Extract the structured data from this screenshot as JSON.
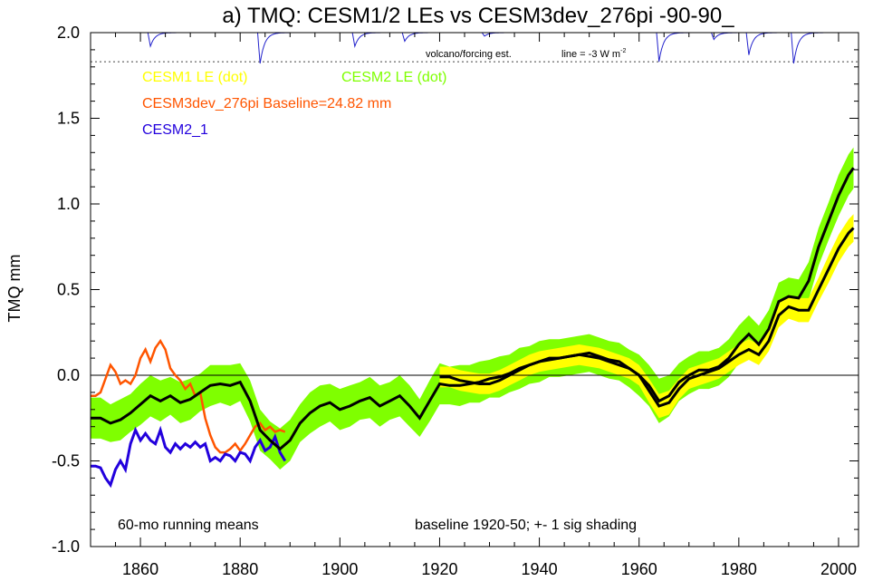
{
  "chart_data": {
    "type": "line",
    "title": "a) TMQ: CESM1/2 LEs vs CESM3dev_276pi -90-90_",
    "ylabel": "TMQ mm",
    "xlim": [
      1850,
      2004
    ],
    "ylim": [
      -1.0,
      2.0
    ],
    "xticks": [
      1860,
      1880,
      1900,
      1920,
      1940,
      1960,
      1980,
      2000
    ],
    "yticks": [
      -1.0,
      -0.5,
      0.0,
      0.5,
      1.0,
      1.5,
      2.0
    ],
    "ytick_labels": [
      "-1.0",
      "-0.5",
      "0.0",
      "0.5",
      "1.0",
      "1.5",
      "2.0"
    ],
    "annotations": {
      "volcano": "volcano/forcing est.",
      "line_scale": "line = -3 W m",
      "line_scale_sup": "-2",
      "left_note": "60-mo running means",
      "right_note": "baseline 1920-50; +- 1 sig shading"
    },
    "legend": [
      {
        "text": "CESM1 LE (dot)",
        "color": "#ffff00"
      },
      {
        "text": "CESM2 LE (dot)",
        "color": "#7fff00"
      },
      {
        "text": "CESM3dev_276pi Baseline=24.82 mm",
        "color": "#ff5500"
      },
      {
        "text": "CESM2_1",
        "color": "#2200dd"
      }
    ],
    "colors": {
      "cesm1": "#ffff00",
      "cesm2": "#7fff00",
      "cesm3": "#ff5500",
      "cesm2_1": "#2200dd",
      "mean": "#000000",
      "volcano": "#2222cc"
    },
    "cesm2_le_mean": {
      "x": [
        1850,
        1852,
        1854,
        1856,
        1858,
        1860,
        1862,
        1864,
        1866,
        1868,
        1870,
        1872,
        1874,
        1876,
        1878,
        1880,
        1882,
        1884,
        1886,
        1888,
        1890,
        1892,
        1894,
        1896,
        1898,
        1900,
        1902,
        1904,
        1906,
        1908,
        1910,
        1912,
        1914,
        1916,
        1918,
        1920,
        1922,
        1924,
        1926,
        1928,
        1930,
        1932,
        1934,
        1936,
        1938,
        1940,
        1942,
        1944,
        1946,
        1948,
        1950,
        1952,
        1954,
        1956,
        1958,
        1960,
        1962,
        1964,
        1966,
        1968,
        1970,
        1972,
        1974,
        1976,
        1978,
        1980,
        1982,
        1984,
        1986,
        1988,
        1990,
        1992,
        1994,
        1996,
        1998,
        2000,
        2002,
        2003
      ],
      "y": [
        -0.25,
        -0.25,
        -0.28,
        -0.26,
        -0.22,
        -0.17,
        -0.12,
        -0.15,
        -0.12,
        -0.16,
        -0.14,
        -0.1,
        -0.06,
        -0.05,
        -0.06,
        -0.04,
        -0.15,
        -0.32,
        -0.38,
        -0.43,
        -0.38,
        -0.28,
        -0.22,
        -0.18,
        -0.16,
        -0.2,
        -0.18,
        -0.15,
        -0.13,
        -0.18,
        -0.15,
        -0.12,
        -0.18,
        -0.25,
        -0.15,
        -0.05,
        -0.06,
        -0.06,
        -0.05,
        -0.04,
        -0.02,
        -0.01,
        0.01,
        0.04,
        0.06,
        0.08,
        0.1,
        0.1,
        0.11,
        0.12,
        0.13,
        0.11,
        0.09,
        0.08,
        0.04,
        0.0,
        -0.06,
        -0.15,
        -0.12,
        -0.04,
        0.0,
        0.03,
        0.03,
        0.05,
        0.1,
        0.18,
        0.24,
        0.18,
        0.27,
        0.43,
        0.46,
        0.45,
        0.55,
        0.75,
        0.9,
        1.05,
        1.17,
        1.21
      ],
      "sigma": [
        0.12,
        0.12,
        0.11,
        0.12,
        0.11,
        0.12,
        0.12,
        0.12,
        0.11,
        0.12,
        0.12,
        0.11,
        0.12,
        0.11,
        0.12,
        0.11,
        0.12,
        0.12,
        0.11,
        0.12,
        0.12,
        0.11,
        0.12,
        0.12,
        0.11,
        0.12,
        0.12,
        0.11,
        0.12,
        0.12,
        0.11,
        0.12,
        0.12,
        0.11,
        0.12,
        0.12,
        0.11,
        0.12,
        0.11,
        0.12,
        0.11,
        0.12,
        0.11,
        0.12,
        0.11,
        0.12,
        0.11,
        0.11,
        0.11,
        0.11,
        0.11,
        0.11,
        0.11,
        0.11,
        0.11,
        0.12,
        0.12,
        0.13,
        0.12,
        0.11,
        0.11,
        0.11,
        0.11,
        0.11,
        0.11,
        0.11,
        0.11,
        0.11,
        0.11,
        0.11,
        0.11,
        0.11,
        0.11,
        0.11,
        0.11,
        0.12,
        0.12,
        0.12
      ]
    },
    "cesm1_le_mean": {
      "x": [
        1920,
        1922,
        1924,
        1926,
        1928,
        1930,
        1932,
        1934,
        1936,
        1938,
        1940,
        1942,
        1944,
        1946,
        1948,
        1950,
        1952,
        1954,
        1956,
        1958,
        1960,
        1962,
        1964,
        1966,
        1968,
        1970,
        1972,
        1974,
        1976,
        1978,
        1980,
        1982,
        1984,
        1986,
        1988,
        1990,
        1992,
        1994,
        1996,
        1998,
        2000,
        2002,
        2003
      ],
      "y": [
        -0.01,
        -0.01,
        -0.03,
        -0.04,
        -0.05,
        -0.05,
        -0.03,
        0.0,
        0.03,
        0.06,
        0.08,
        0.09,
        0.1,
        0.11,
        0.12,
        0.11,
        0.1,
        0.08,
        0.06,
        0.04,
        0.0,
        -0.09,
        -0.18,
        -0.16,
        -0.08,
        -0.02,
        0.0,
        0.02,
        0.04,
        0.08,
        0.12,
        0.15,
        0.12,
        0.2,
        0.35,
        0.4,
        0.38,
        0.38,
        0.5,
        0.62,
        0.74,
        0.83,
        0.86
      ],
      "sigma": [
        0.06,
        0.06,
        0.06,
        0.06,
        0.06,
        0.06,
        0.06,
        0.06,
        0.06,
        0.06,
        0.06,
        0.06,
        0.06,
        0.06,
        0.06,
        0.06,
        0.06,
        0.06,
        0.06,
        0.06,
        0.06,
        0.07,
        0.07,
        0.07,
        0.06,
        0.06,
        0.06,
        0.06,
        0.06,
        0.06,
        0.06,
        0.06,
        0.06,
        0.06,
        0.07,
        0.07,
        0.07,
        0.07,
        0.07,
        0.08,
        0.08,
        0.08,
        0.08
      ]
    },
    "cesm3dev_276pi": {
      "x": [
        1850,
        1851,
        1852,
        1853,
        1854,
        1855,
        1856,
        1857,
        1858,
        1859,
        1860,
        1861,
        1862,
        1863,
        1864,
        1865,
        1866,
        1867,
        1868,
        1869,
        1870,
        1871,
        1872,
        1873,
        1874,
        1875,
        1876,
        1877,
        1878,
        1879,
        1880,
        1881,
        1882,
        1883,
        1884,
        1885,
        1886,
        1887,
        1888,
        1889
      ],
      "y": [
        -0.12,
        -0.12,
        -0.1,
        -0.02,
        0.06,
        0.02,
        -0.05,
        -0.03,
        -0.05,
        0.0,
        0.1,
        0.15,
        0.08,
        0.16,
        0.2,
        0.15,
        0.04,
        0.0,
        -0.03,
        -0.08,
        -0.05,
        -0.12,
        -0.1,
        -0.25,
        -0.35,
        -0.42,
        -0.45,
        -0.45,
        -0.43,
        -0.4,
        -0.44,
        -0.4,
        -0.35,
        -0.3,
        -0.28,
        -0.32,
        -0.3,
        -0.33,
        -0.32,
        -0.33
      ]
    },
    "cesm2_1": {
      "x": [
        1850,
        1851,
        1852,
        1853,
        1854,
        1855,
        1856,
        1857,
        1858,
        1859,
        1860,
        1861,
        1862,
        1863,
        1864,
        1865,
        1866,
        1867,
        1868,
        1869,
        1870,
        1871,
        1872,
        1873,
        1874,
        1875,
        1876,
        1877,
        1878,
        1879,
        1880,
        1881,
        1882,
        1883,
        1884,
        1885,
        1886,
        1887,
        1888,
        1889
      ],
      "y": [
        -0.53,
        -0.53,
        -0.54,
        -0.6,
        -0.64,
        -0.55,
        -0.5,
        -0.55,
        -0.4,
        -0.32,
        -0.38,
        -0.34,
        -0.38,
        -0.4,
        -0.32,
        -0.42,
        -0.45,
        -0.4,
        -0.43,
        -0.4,
        -0.42,
        -0.39,
        -0.42,
        -0.4,
        -0.5,
        -0.48,
        -0.5,
        -0.46,
        -0.47,
        -0.5,
        -0.45,
        -0.46,
        -0.5,
        -0.42,
        -0.38,
        -0.44,
        -0.42,
        -0.36,
        -0.45,
        -0.5
      ]
    },
    "volcano_events": [
      {
        "x": 1862,
        "depth": 0.08
      },
      {
        "x": 1884,
        "depth": 0.18
      },
      {
        "x": 1903,
        "depth": 0.08
      },
      {
        "x": 1913,
        "depth": 0.05
      },
      {
        "x": 1929,
        "depth": 0.02
      },
      {
        "x": 1964,
        "depth": 0.17
      },
      {
        "x": 1975,
        "depth": 0.04
      },
      {
        "x": 1982,
        "depth": 0.13
      },
      {
        "x": 1991,
        "depth": 0.18
      }
    ]
  }
}
